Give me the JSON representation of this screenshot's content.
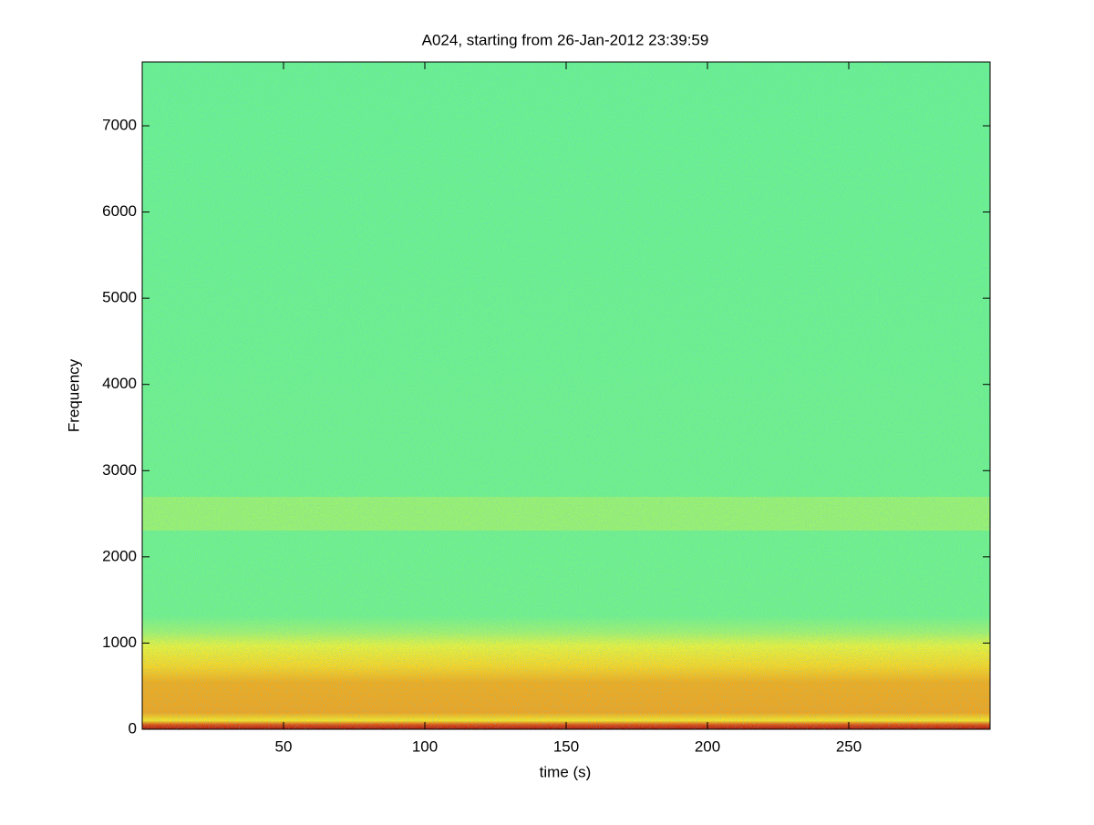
{
  "chart_data": {
    "type": "spectrogram",
    "title": "A024, starting from 26-Jan-2012 23:39:59",
    "x_label": "time (s)",
    "y_label": "Frequency",
    "xlim": [
      0,
      300
    ],
    "xticks": [
      50,
      100,
      150,
      200,
      250
    ],
    "ylim": [
      0,
      7740
    ],
    "yticks": [
      0,
      1000,
      2000,
      3000,
      4000,
      5000,
      6000,
      7000
    ]
  }
}
